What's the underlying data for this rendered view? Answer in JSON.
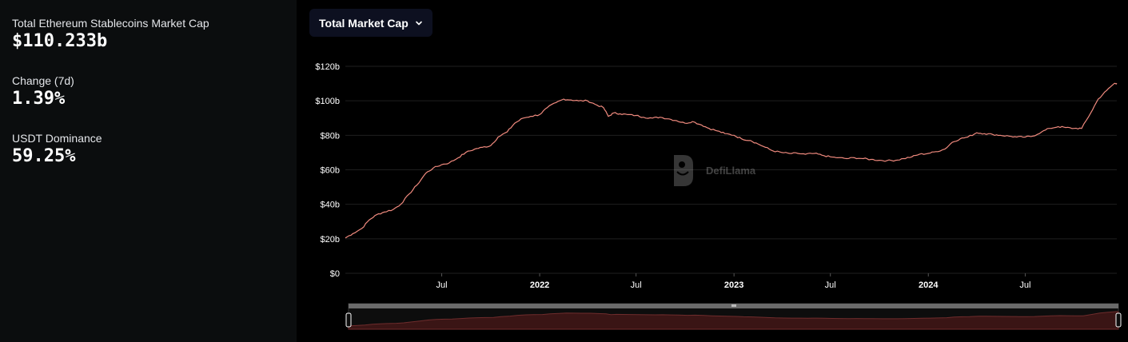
{
  "sidebar": {
    "market_cap_label": "Total Ethereum Stablecoins Market Cap",
    "market_cap_value": "$110.233b",
    "change_label": "Change (7d)",
    "change_value": "1.39%",
    "dominance_label": "USDT Dominance",
    "dominance_value": "59.25%"
  },
  "toolbar": {
    "metric_label": "Total Market Cap"
  },
  "watermark": "DefiLlama",
  "colors": {
    "line": "#f08a7e",
    "background": "#000000",
    "sidebar": "#0b0d0e",
    "grid": "#1f1f1f",
    "text": "#ffffff"
  },
  "chart_data": {
    "type": "line",
    "x_ticks": [
      "Jul",
      "2022",
      "Jul",
      "2023",
      "Jul",
      "2024",
      "Jul"
    ],
    "y_ticks": [
      "$0",
      "$20b",
      "$40b",
      "$60b",
      "$80b",
      "$100b",
      "$120b"
    ],
    "ylim": [
      0,
      120
    ],
    "unit": "b",
    "xlim": [
      "2021-01-01",
      "2024-12-20"
    ],
    "grid": true,
    "series": [
      {
        "values": [
          {
            "x": "2021-01-01",
            "y": 20.5
          },
          {
            "x": "2021-01-15",
            "y": 23
          },
          {
            "x": "2021-02-01",
            "y": 26
          },
          {
            "x": "2021-02-15",
            "y": 31
          },
          {
            "x": "2021-03-01",
            "y": 34
          },
          {
            "x": "2021-03-15",
            "y": 35.5
          },
          {
            "x": "2021-04-01",
            "y": 37
          },
          {
            "x": "2021-04-15",
            "y": 40
          },
          {
            "x": "2021-05-01",
            "y": 46
          },
          {
            "x": "2021-05-15",
            "y": 51
          },
          {
            "x": "2021-06-01",
            "y": 58
          },
          {
            "x": "2021-06-15",
            "y": 61
          },
          {
            "x": "2021-07-01",
            "y": 63
          },
          {
            "x": "2021-07-15",
            "y": 64
          },
          {
            "x": "2021-08-01",
            "y": 67
          },
          {
            "x": "2021-08-15",
            "y": 70
          },
          {
            "x": "2021-09-01",
            "y": 72
          },
          {
            "x": "2021-09-15",
            "y": 73
          },
          {
            "x": "2021-10-01",
            "y": 74
          },
          {
            "x": "2021-10-15",
            "y": 79
          },
          {
            "x": "2021-11-01",
            "y": 82
          },
          {
            "x": "2021-11-15",
            "y": 87
          },
          {
            "x": "2021-12-01",
            "y": 90
          },
          {
            "x": "2021-12-15",
            "y": 91
          },
          {
            "x": "2022-01-01",
            "y": 92
          },
          {
            "x": "2022-01-15",
            "y": 96
          },
          {
            "x": "2022-02-01",
            "y": 99
          },
          {
            "x": "2022-02-15",
            "y": 101
          },
          {
            "x": "2022-03-01",
            "y": 100.5
          },
          {
            "x": "2022-03-15",
            "y": 100
          },
          {
            "x": "2022-04-01",
            "y": 100
          },
          {
            "x": "2022-04-15",
            "y": 98
          },
          {
            "x": "2022-05-01",
            "y": 96
          },
          {
            "x": "2022-05-10",
            "y": 91
          },
          {
            "x": "2022-05-20",
            "y": 93
          },
          {
            "x": "2022-06-01",
            "y": 92.5
          },
          {
            "x": "2022-06-15",
            "y": 92
          },
          {
            "x": "2022-07-01",
            "y": 91.5
          },
          {
            "x": "2022-07-15",
            "y": 90.5
          },
          {
            "x": "2022-08-01",
            "y": 90
          },
          {
            "x": "2022-08-15",
            "y": 90.5
          },
          {
            "x": "2022-09-01",
            "y": 89.5
          },
          {
            "x": "2022-09-15",
            "y": 88.5
          },
          {
            "x": "2022-10-01",
            "y": 87
          },
          {
            "x": "2022-10-15",
            "y": 88
          },
          {
            "x": "2022-11-01",
            "y": 86
          },
          {
            "x": "2022-11-15",
            "y": 84
          },
          {
            "x": "2022-12-01",
            "y": 82.5
          },
          {
            "x": "2022-12-15",
            "y": 81
          },
          {
            "x": "2023-01-01",
            "y": 80
          },
          {
            "x": "2023-01-15",
            "y": 78
          },
          {
            "x": "2023-02-01",
            "y": 77
          },
          {
            "x": "2023-02-15",
            "y": 75
          },
          {
            "x": "2023-03-01",
            "y": 73
          },
          {
            "x": "2023-03-15",
            "y": 71
          },
          {
            "x": "2023-04-01",
            "y": 70
          },
          {
            "x": "2023-04-15",
            "y": 69.5
          },
          {
            "x": "2023-05-01",
            "y": 69.5
          },
          {
            "x": "2023-05-15",
            "y": 69
          },
          {
            "x": "2023-06-01",
            "y": 69.5
          },
          {
            "x": "2023-06-15",
            "y": 68.5
          },
          {
            "x": "2023-07-01",
            "y": 67.5
          },
          {
            "x": "2023-07-15",
            "y": 67
          },
          {
            "x": "2023-08-01",
            "y": 66.5
          },
          {
            "x": "2023-08-15",
            "y": 67
          },
          {
            "x": "2023-09-01",
            "y": 66.5
          },
          {
            "x": "2023-09-15",
            "y": 66
          },
          {
            "x": "2023-10-01",
            "y": 65.5
          },
          {
            "x": "2023-10-15",
            "y": 65.3
          },
          {
            "x": "2023-11-01",
            "y": 65.5
          },
          {
            "x": "2023-11-15",
            "y": 66.5
          },
          {
            "x": "2023-12-01",
            "y": 67.5
          },
          {
            "x": "2023-12-15",
            "y": 69
          },
          {
            "x": "2024-01-01",
            "y": 69.5
          },
          {
            "x": "2024-01-15",
            "y": 70.5
          },
          {
            "x": "2024-02-01",
            "y": 72
          },
          {
            "x": "2024-02-15",
            "y": 76
          },
          {
            "x": "2024-03-01",
            "y": 78
          },
          {
            "x": "2024-03-15",
            "y": 79
          },
          {
            "x": "2024-04-01",
            "y": 81.5
          },
          {
            "x": "2024-04-15",
            "y": 81
          },
          {
            "x": "2024-05-01",
            "y": 80.5
          },
          {
            "x": "2024-05-15",
            "y": 80
          },
          {
            "x": "2024-06-01",
            "y": 79.5
          },
          {
            "x": "2024-06-15",
            "y": 79
          },
          {
            "x": "2024-07-01",
            "y": 79
          },
          {
            "x": "2024-07-15",
            "y": 79.5
          },
          {
            "x": "2024-08-01",
            "y": 82
          },
          {
            "x": "2024-08-15",
            "y": 84
          },
          {
            "x": "2024-09-01",
            "y": 85
          },
          {
            "x": "2024-09-15",
            "y": 84.5
          },
          {
            "x": "2024-10-01",
            "y": 84
          },
          {
            "x": "2024-10-15",
            "y": 84
          },
          {
            "x": "2024-11-01",
            "y": 93
          },
          {
            "x": "2024-11-15",
            "y": 101
          },
          {
            "x": "2024-12-01",
            "y": 106
          },
          {
            "x": "2024-12-15",
            "y": 110
          },
          {
            "x": "2024-12-20",
            "y": 110.2
          }
        ]
      }
    ]
  }
}
